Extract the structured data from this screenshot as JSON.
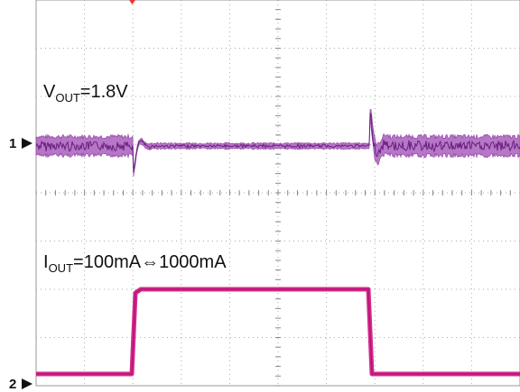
{
  "traces": [
    {
      "marker": "1",
      "label": "V",
      "label_sub": "OUT",
      "label_rest": "=1.8V"
    },
    {
      "marker": "2",
      "label": "I",
      "label_sub": "OUT",
      "label_rest": "=100mA⇔1000mA"
    }
  ]
}
